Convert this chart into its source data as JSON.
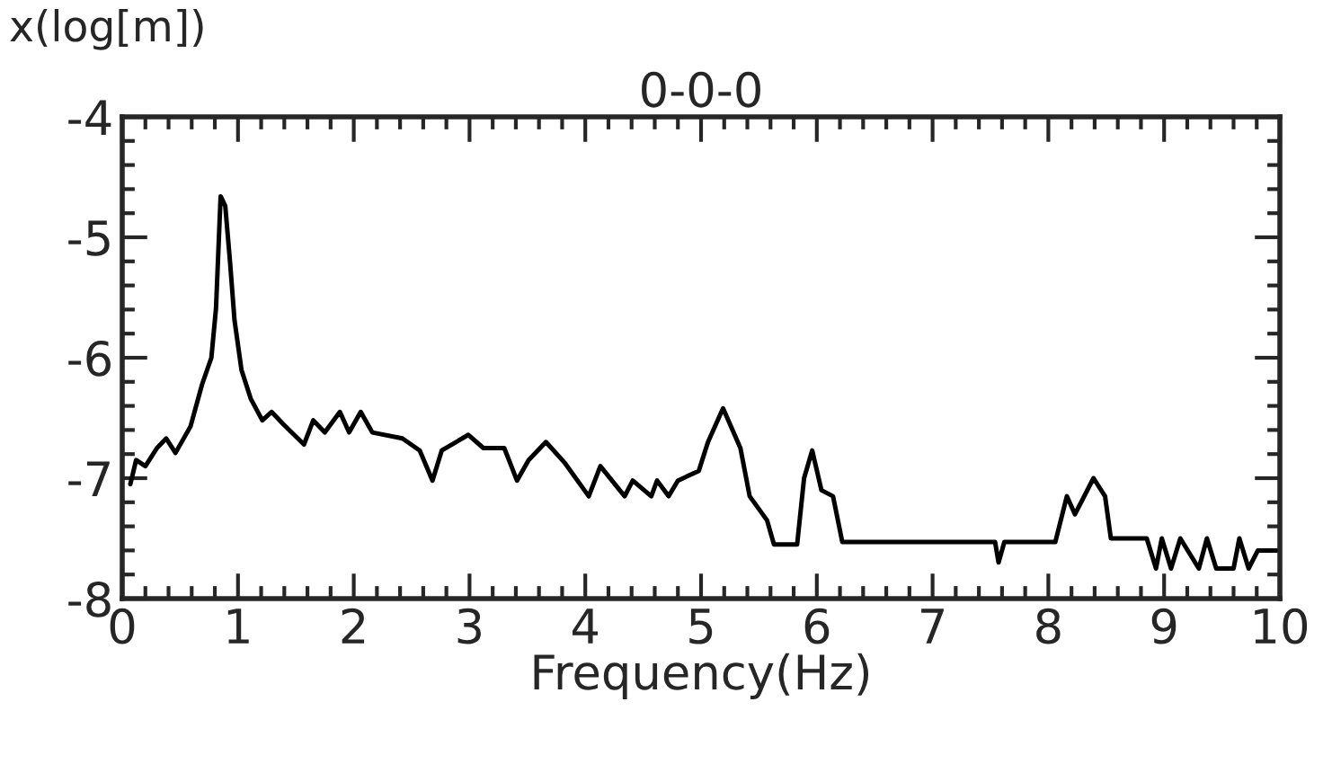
{
  "chart_data": {
    "type": "line",
    "title": "0-0-0",
    "xlabel": "Frequency(Hz)",
    "ylabel": "x(log[m])",
    "xlim": [
      0,
      10
    ],
    "xticks": [
      0,
      1,
      2,
      3,
      4,
      5,
      6,
      7,
      8,
      9,
      10
    ],
    "ylim": [
      -8,
      -4
    ],
    "yticks": [
      -8,
      -7,
      -6,
      -5,
      -4
    ],
    "grid": false,
    "legend": false,
    "marker": "none",
    "line_style": "solid",
    "series": [
      {
        "color": "#000000",
        "x": [
          0.07,
          0.12,
          0.2,
          0.3,
          0.38,
          0.46,
          0.59,
          0.69,
          0.77,
          0.81,
          0.84,
          0.85,
          0.89,
          0.93,
          0.97,
          1.03,
          1.11,
          1.21,
          1.29,
          1.39,
          1.57,
          1.65,
          1.75,
          1.88,
          1.96,
          2.06,
          2.16,
          2.42,
          2.57,
          2.68,
          2.76,
          2.99,
          3.12,
          3.3,
          3.41,
          3.51,
          3.66,
          3.82,
          4.03,
          4.13,
          4.34,
          4.41,
          4.57,
          4.62,
          4.72,
          4.8,
          4.98,
          5.06,
          5.19,
          5.34,
          5.42,
          5.57,
          5.63,
          5.83,
          5.89,
          5.96,
          6.04,
          6.14,
          6.22,
          7.54,
          7.57,
          7.62,
          8.06,
          8.16,
          8.23,
          8.39,
          8.49,
          8.54,
          8.85,
          8.93,
          8.98,
          9.06,
          9.14,
          9.3,
          9.37,
          9.45,
          9.6,
          9.65,
          9.73,
          9.81,
          9.97
        ],
        "values": [
          -7.05,
          -6.85,
          -6.9,
          -6.75,
          -6.67,
          -6.79,
          -6.57,
          -6.22,
          -6.0,
          -5.59,
          -4.89,
          -4.66,
          -4.74,
          -5.19,
          -5.69,
          -6.1,
          -6.34,
          -6.52,
          -6.45,
          -6.55,
          -6.72,
          -6.52,
          -6.62,
          -6.45,
          -6.62,
          -6.45,
          -6.62,
          -6.67,
          -6.77,
          -7.02,
          -6.77,
          -6.64,
          -6.75,
          -6.75,
          -7.02,
          -6.85,
          -6.7,
          -6.87,
          -7.15,
          -6.9,
          -7.15,
          -7.02,
          -7.15,
          -7.02,
          -7.15,
          -7.02,
          -6.94,
          -6.7,
          -6.42,
          -6.75,
          -7.15,
          -7.35,
          -7.55,
          -7.55,
          -7.0,
          -6.77,
          -7.1,
          -7.15,
          -7.53,
          -7.53,
          -7.7,
          -7.53,
          -7.53,
          -7.15,
          -7.3,
          -7.0,
          -7.15,
          -7.5,
          -7.5,
          -7.75,
          -7.5,
          -7.75,
          -7.5,
          -7.75,
          -7.5,
          -7.75,
          -7.75,
          -7.5,
          -7.75,
          -7.6,
          -7.6
        ]
      }
    ]
  }
}
